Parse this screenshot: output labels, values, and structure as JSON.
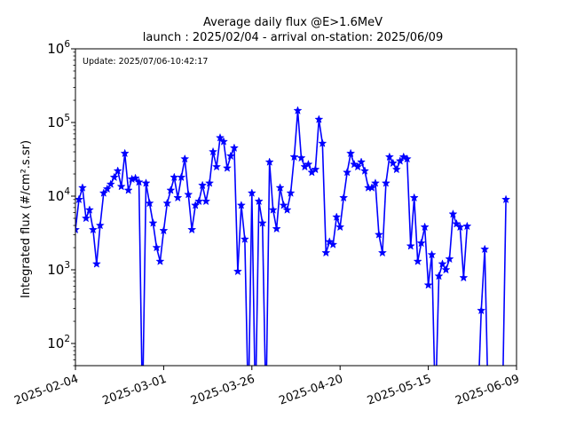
{
  "chart_data": {
    "type": "line",
    "title": "Average daily flux @E>1.6MeV",
    "subtitle": "launch : 2025/02/04 - arrival on-station: 2025/06/09",
    "annotation": "Update: 2025/07/06-10:42:17",
    "ylabel": "Integrated flux (#/cm².s.sr)",
    "xlabel": "",
    "y_scale": "log",
    "ylim": [
      50,
      1000000
    ],
    "xlim": [
      "2025-02-04",
      "2025-06-09"
    ],
    "grid": false,
    "x_ticks": [
      "2025-02-04",
      "2025-03-01",
      "2025-03-26",
      "2025-04-20",
      "2025-05-15",
      "2025-06-09"
    ],
    "y_ticks": [
      {
        "value": 100,
        "base": "10",
        "exp": "2"
      },
      {
        "value": 1000,
        "base": "10",
        "exp": "3"
      },
      {
        "value": 10000,
        "base": "10",
        "exp": "4"
      },
      {
        "value": 100000,
        "base": "10",
        "exp": "5"
      },
      {
        "value": 1000000,
        "base": "10",
        "exp": "6"
      }
    ],
    "series_color": "#0000ff",
    "series": [
      {
        "name": "",
        "points": [
          [
            "2025-02-04",
            3500
          ],
          [
            "2025-02-05",
            9000
          ],
          [
            "2025-02-06",
            13000
          ],
          [
            "2025-02-07",
            5000
          ],
          [
            "2025-02-08",
            6500
          ],
          [
            "2025-02-09",
            3500
          ],
          [
            "2025-02-10",
            1200
          ],
          [
            "2025-02-11",
            4000
          ],
          [
            "2025-02-12",
            11000
          ],
          [
            "2025-02-13",
            12500
          ],
          [
            "2025-02-14",
            14500
          ],
          [
            "2025-02-15",
            18000
          ],
          [
            "2025-02-16",
            22000
          ],
          [
            "2025-02-17",
            13500
          ],
          [
            "2025-02-18",
            38000
          ],
          [
            "2025-02-19",
            12000
          ],
          [
            "2025-02-20",
            17000
          ],
          [
            "2025-02-21",
            17500
          ],
          [
            "2025-02-22",
            15500
          ],
          [
            "2025-02-23",
            0
          ],
          [
            "2025-02-24",
            15000
          ],
          [
            "2025-02-25",
            8000
          ],
          [
            "2025-02-26",
            4300
          ],
          [
            "2025-02-27",
            2000
          ],
          [
            "2025-02-28",
            1300
          ],
          [
            "2025-03-01",
            3400
          ],
          [
            "2025-03-02",
            8000
          ],
          [
            "2025-03-03",
            12000
          ],
          [
            "2025-03-04",
            18000
          ],
          [
            "2025-03-05",
            9500
          ],
          [
            "2025-03-06",
            18000
          ],
          [
            "2025-03-07",
            32000
          ],
          [
            "2025-03-08",
            10500
          ],
          [
            "2025-03-09",
            3500
          ],
          [
            "2025-03-10",
            7500
          ],
          [
            "2025-03-11",
            8500
          ],
          [
            "2025-03-12",
            14000
          ],
          [
            "2025-03-13",
            8500
          ],
          [
            "2025-03-14",
            15000
          ],
          [
            "2025-03-15",
            40000
          ],
          [
            "2025-03-16",
            25000
          ],
          [
            "2025-03-17",
            62000
          ],
          [
            "2025-03-18",
            55000
          ],
          [
            "2025-03-19",
            24000
          ],
          [
            "2025-03-20",
            35000
          ],
          [
            "2025-03-21",
            45000
          ],
          [
            "2025-03-22",
            950
          ],
          [
            "2025-03-23",
            7500
          ],
          [
            "2025-03-24",
            2600
          ],
          [
            "2025-03-25",
            0
          ],
          [
            "2025-03-26",
            11000
          ],
          [
            "2025-03-27",
            0
          ],
          [
            "2025-03-28",
            8500
          ],
          [
            "2025-03-29",
            4300
          ],
          [
            "2025-03-30",
            0
          ],
          [
            "2025-03-31",
            29000
          ],
          [
            "2025-04-01",
            6500
          ],
          [
            "2025-04-02",
            3600
          ],
          [
            "2025-04-03",
            13000
          ],
          [
            "2025-04-04",
            7500
          ],
          [
            "2025-04-05",
            6500
          ],
          [
            "2025-04-06",
            11000
          ],
          [
            "2025-04-07",
            34000
          ],
          [
            "2025-04-08",
            145000
          ],
          [
            "2025-04-09",
            33000
          ],
          [
            "2025-04-10",
            25000
          ],
          [
            "2025-04-11",
            27000
          ],
          [
            "2025-04-12",
            21000
          ],
          [
            "2025-04-13",
            23000
          ],
          [
            "2025-04-14",
            110000
          ],
          [
            "2025-04-15",
            52000
          ],
          [
            "2025-04-16",
            1700
          ],
          [
            "2025-04-17",
            2400
          ],
          [
            "2025-04-18",
            2200
          ],
          [
            "2025-04-19",
            5200
          ],
          [
            "2025-04-20",
            3800
          ],
          [
            "2025-04-21",
            9500
          ],
          [
            "2025-04-22",
            21000
          ],
          [
            "2025-04-23",
            38000
          ],
          [
            "2025-04-24",
            27000
          ],
          [
            "2025-04-25",
            25000
          ],
          [
            "2025-04-26",
            29000
          ],
          [
            "2025-04-27",
            22000
          ],
          [
            "2025-04-28",
            13000
          ],
          [
            "2025-04-29",
            13000
          ],
          [
            "2025-04-30",
            15000
          ],
          [
            "2025-05-01",
            3000
          ],
          [
            "2025-05-02",
            1700
          ],
          [
            "2025-05-03",
            15000
          ],
          [
            "2025-05-04",
            34000
          ],
          [
            "2025-05-05",
            28000
          ],
          [
            "2025-05-06",
            23000
          ],
          [
            "2025-05-07",
            30000
          ],
          [
            "2025-05-08",
            34000
          ],
          [
            "2025-05-09",
            32000
          ],
          [
            "2025-05-10",
            2100
          ],
          [
            "2025-05-11",
            9500
          ],
          [
            "2025-05-12",
            1300
          ],
          [
            "2025-05-13",
            2300
          ],
          [
            "2025-05-14",
            3800
          ],
          [
            "2025-05-15",
            620
          ],
          [
            "2025-05-16",
            1600
          ],
          [
            "2025-05-17",
            0
          ],
          [
            "2025-05-18",
            820
          ],
          [
            "2025-05-19",
            1200
          ],
          [
            "2025-05-20",
            1000
          ],
          [
            "2025-05-21",
            1400
          ],
          [
            "2025-05-22",
            5700
          ],
          [
            "2025-05-23",
            4200
          ],
          [
            "2025-05-24",
            3800
          ],
          [
            "2025-05-25",
            780
          ],
          [
            "2025-05-26",
            3900
          ],
          [
            "2025-05-27",
            null
          ],
          [
            "2025-05-28",
            null
          ],
          [
            "2025-05-29",
            0
          ],
          [
            "2025-05-30",
            280
          ],
          [
            "2025-05-31",
            1900
          ],
          [
            "2025-06-01",
            0
          ],
          [
            "2025-06-02",
            null
          ],
          [
            "2025-06-03",
            null
          ],
          [
            "2025-06-04",
            null
          ],
          [
            "2025-06-05",
            0
          ],
          [
            "2025-06-06",
            9000
          ]
        ]
      }
    ]
  }
}
